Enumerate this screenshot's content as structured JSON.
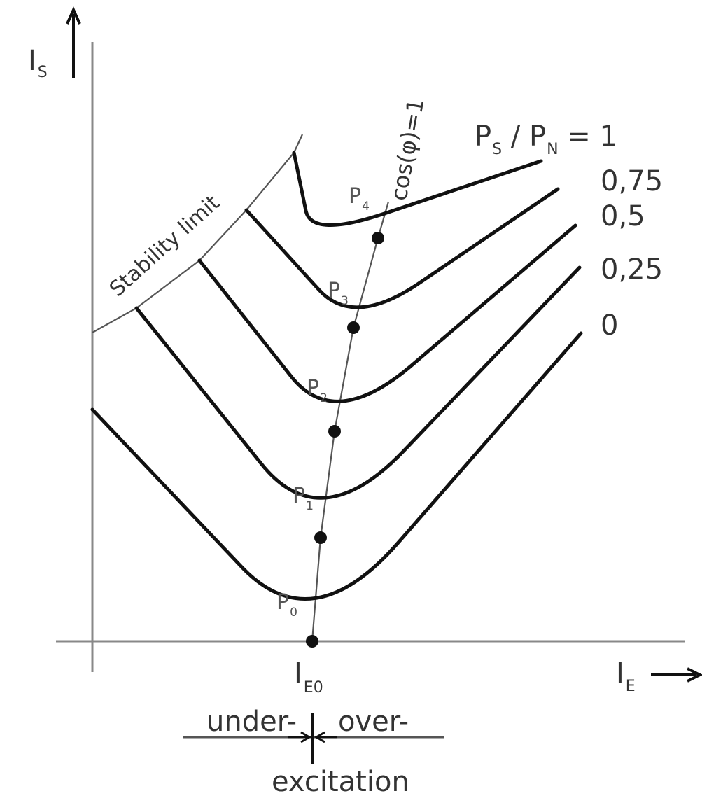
{
  "chart_data": {
    "type": "line",
    "title": "",
    "y_axis_label": {
      "main": "I",
      "sub": "S"
    },
    "x_axis_label": {
      "main": "I",
      "sub": "E"
    },
    "x_tick": {
      "main": "I",
      "sub": "E0"
    },
    "ratio_label": {
      "p1": "P",
      "s1": "S",
      "sep": " / ",
      "p2": "P",
      "s2": "N",
      "eq": " = 1"
    },
    "curve_labels": [
      "0,75",
      "0,5",
      "0,25",
      "0"
    ],
    "stability_label": "Stability limit",
    "cos_label": "cos(φ)=1",
    "point_labels": [
      {
        "main": "P",
        "sub": "0"
      },
      {
        "main": "P",
        "sub": "1"
      },
      {
        "main": "P",
        "sub": "2"
      },
      {
        "main": "P",
        "sub": "3"
      },
      {
        "main": "P",
        "sub": "4"
      }
    ],
    "excitation": {
      "under": "under-",
      "over": "over-",
      "word": "excitation"
    },
    "series": [
      {
        "name": "1",
        "vertex": [
          445,
          340
        ],
        "left_end": [
          420,
          218
        ],
        "right_end": [
          773,
          230
        ]
      },
      {
        "name": "0,75",
        "vertex": [
          505,
          468
        ],
        "left_end": [
          352,
          300
        ],
        "right_end": [
          797,
          270
        ]
      },
      {
        "name": "0,5",
        "vertex": [
          478,
          616
        ],
        "left_end": [
          285,
          372
        ],
        "right_end": [
          822,
          322
        ]
      },
      {
        "name": "0,25",
        "vertex": [
          458,
          768
        ],
        "left_end": [
          195,
          440
        ],
        "right_end": [
          828,
          382
        ]
      },
      {
        "name": "0",
        "vertex": [
          446,
          916
        ],
        "left_end": [
          132,
          585
        ],
        "right_end": [
          830,
          476
        ]
      }
    ],
    "stability_limit": [
      [
        132,
        475
      ],
      [
        195,
        440
      ],
      [
        285,
        372
      ],
      [
        352,
        300
      ],
      [
        420,
        218
      ],
      [
        432,
        192
      ]
    ],
    "cos_phi_1_line": [
      [
        446,
        916
      ],
      [
        458,
        768
      ],
      [
        478,
        616
      ],
      [
        505,
        468
      ],
      [
        540,
        340
      ],
      [
        555,
        288
      ]
    ],
    "color": "#111111"
  }
}
